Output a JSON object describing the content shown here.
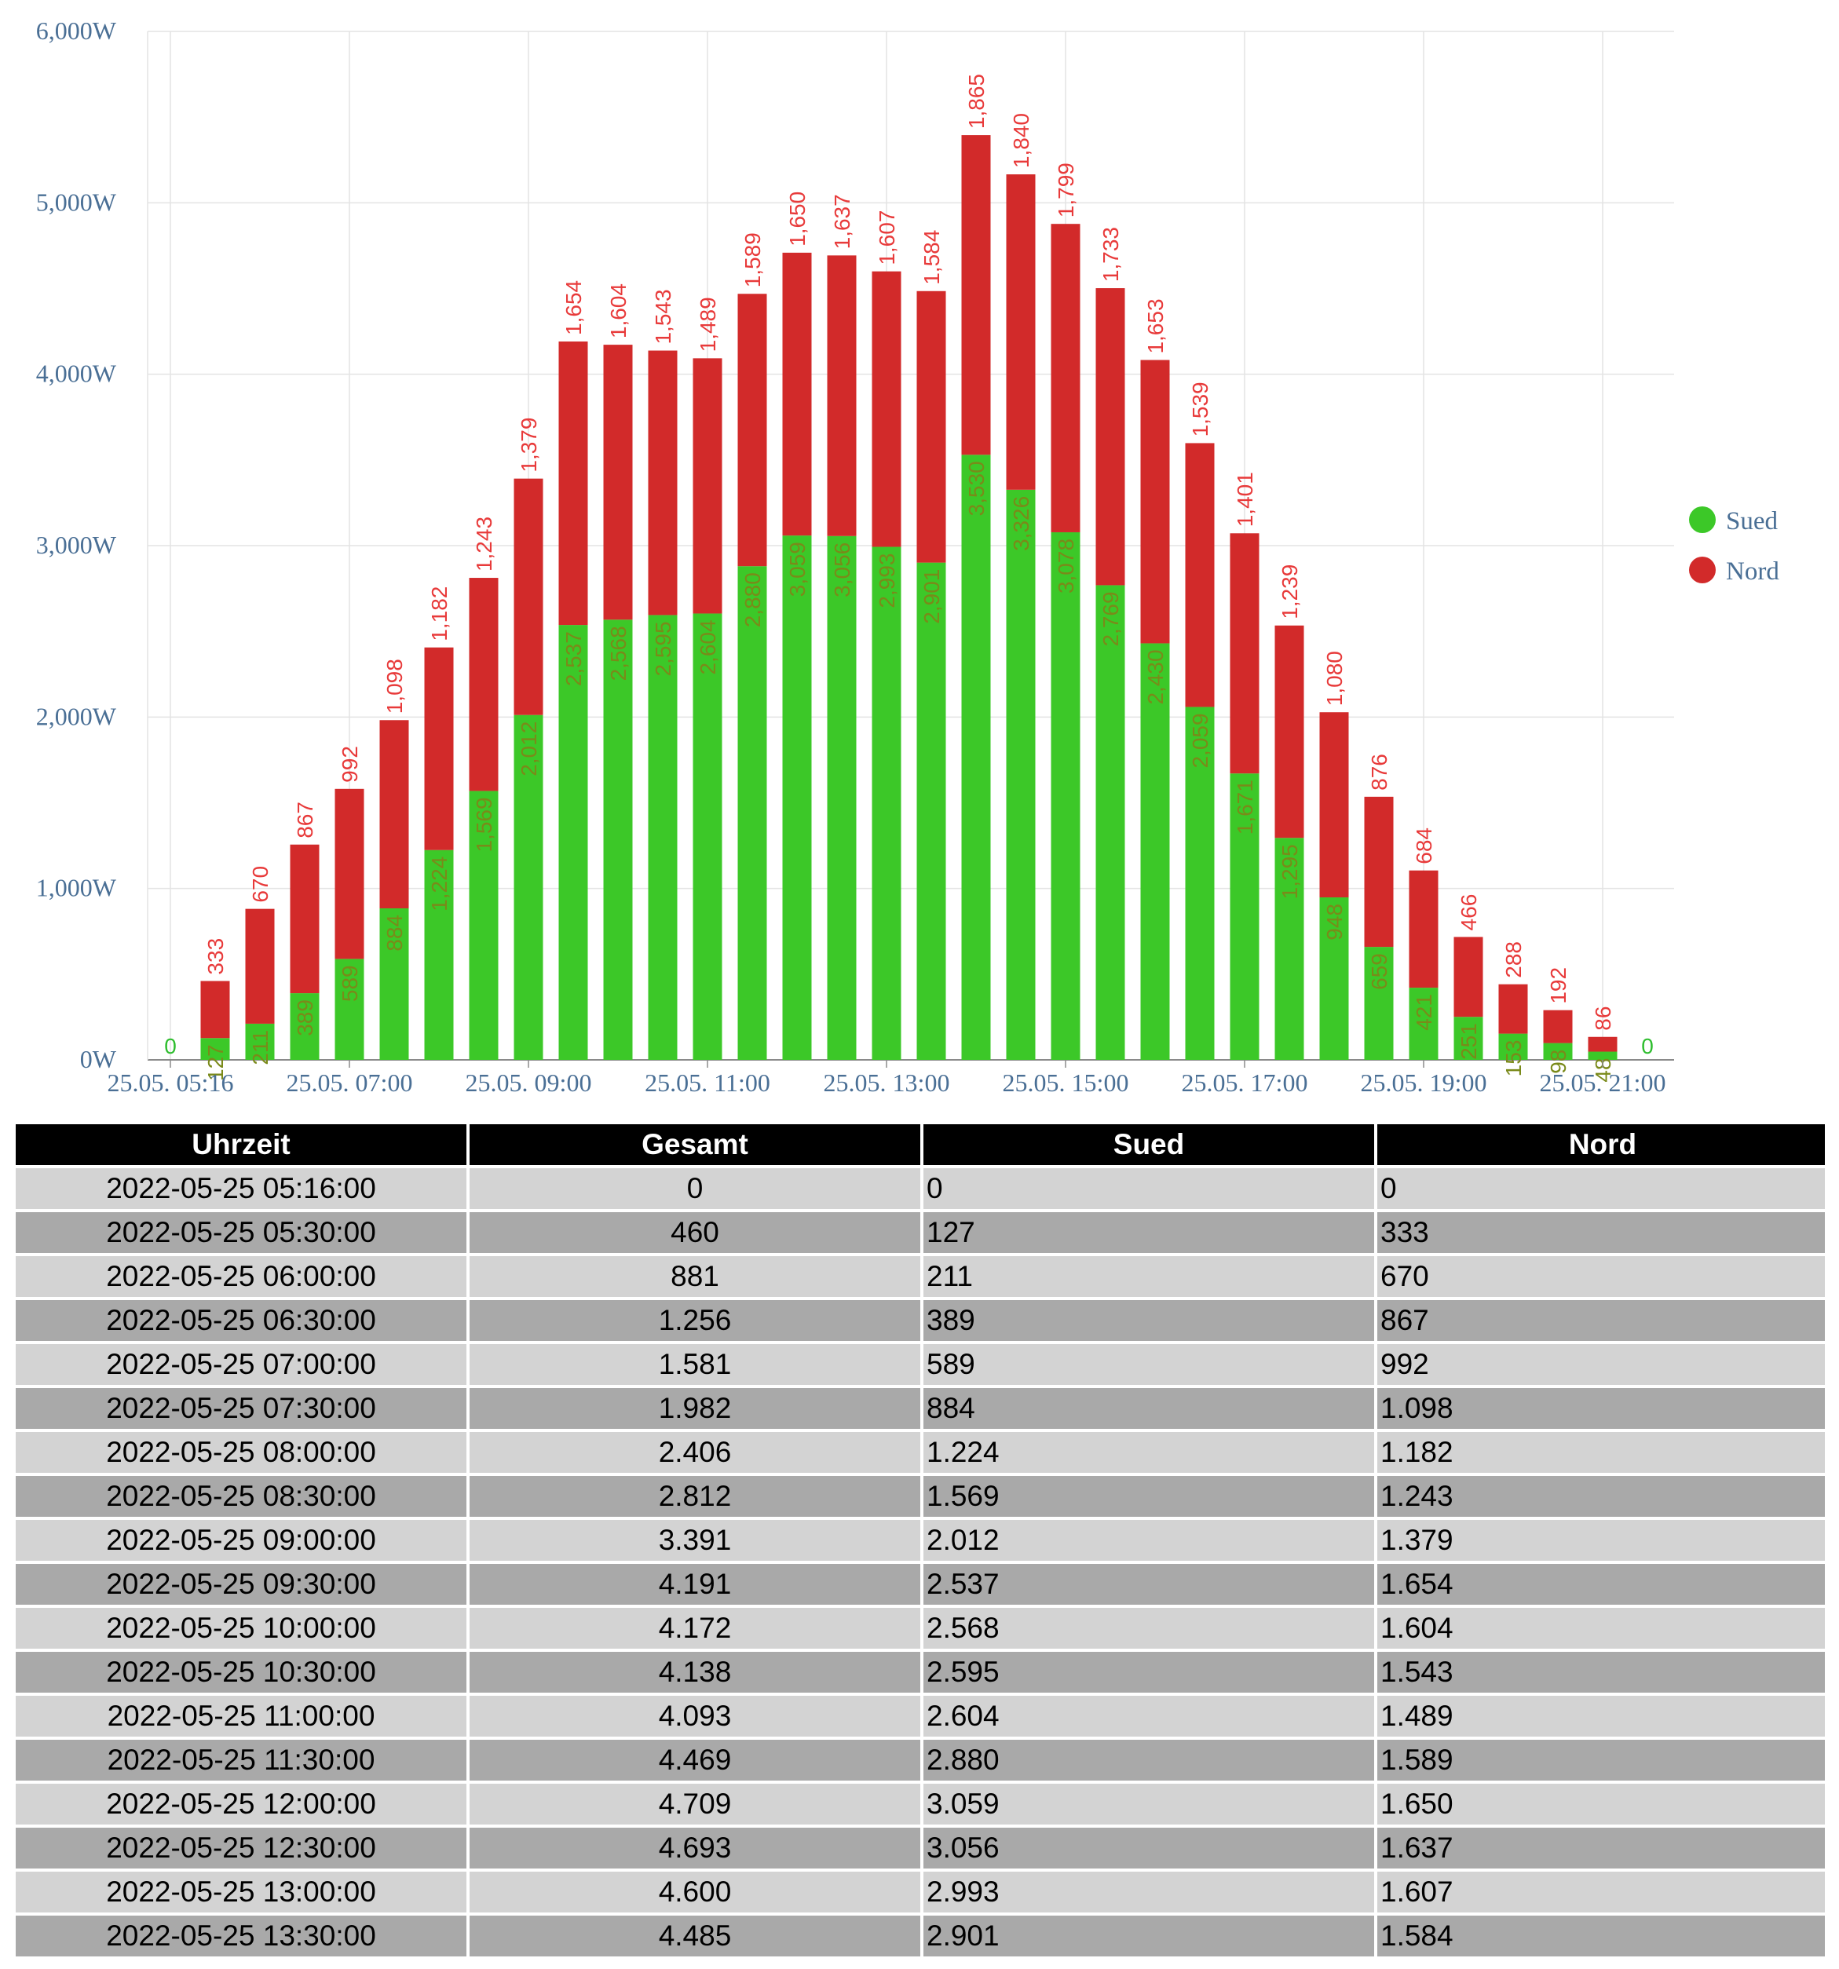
{
  "chart_data": {
    "type": "bar",
    "stacked": true,
    "title": "",
    "xlabel": "",
    "ylabel": "",
    "ylim": [
      0,
      6000
    ],
    "y_ticks": [
      "0W",
      "1,000W",
      "2,000W",
      "3,000W",
      "4,000W",
      "5,000W",
      "6,000W"
    ],
    "x_ticks": [
      "25.05. 05:16",
      "25.05. 07:00",
      "25.05. 09:00",
      "25.05. 11:00",
      "25.05. 13:00",
      "25.05. 15:00",
      "25.05. 17:00",
      "25.05. 19:00",
      "25.05. 21:00"
    ],
    "grid": true,
    "legend_position": "right",
    "categories": [
      "05:16",
      "05:30",
      "06:00",
      "06:30",
      "07:00",
      "07:30",
      "08:00",
      "08:30",
      "09:00",
      "09:30",
      "10:00",
      "10:30",
      "11:00",
      "11:30",
      "12:00",
      "12:30",
      "13:00",
      "13:30",
      "14:00",
      "14:30",
      "15:00",
      "15:30",
      "16:00",
      "16:30",
      "17:00",
      "17:30",
      "18:00",
      "18:30",
      "19:00",
      "19:30",
      "20:00",
      "20:30",
      "21:00",
      "21:16"
    ],
    "series": [
      {
        "name": "Sued",
        "color": "#3cc828",
        "values": [
          0,
          127,
          211,
          389,
          589,
          884,
          1224,
          1569,
          2012,
          2537,
          2568,
          2595,
          2604,
          2880,
          3059,
          3056,
          2993,
          2901,
          3530,
          3326,
          3078,
          2769,
          2430,
          2059,
          1671,
          1295,
          948,
          659,
          421,
          251,
          153,
          98,
          48,
          0
        ],
        "labels": [
          "0",
          "127",
          "211",
          "389",
          "589",
          "884",
          "1,224",
          "1,569",
          "2,012",
          "2,537",
          "2,568",
          "2,595",
          "2,604",
          "2,880",
          "3,059",
          "3,056",
          "2,993",
          "2,901",
          "3,530",
          "3,326",
          "3,078",
          "2,769",
          "2,430",
          "2,059",
          "1,671",
          "1,295",
          "948",
          "659",
          "421",
          "251",
          "153",
          "98",
          "48",
          "0"
        ]
      },
      {
        "name": "Nord",
        "color": "#d22a2a",
        "values": [
          0,
          333,
          670,
          867,
          992,
          1098,
          1182,
          1243,
          1379,
          1654,
          1604,
          1543,
          1489,
          1589,
          1650,
          1637,
          1607,
          1584,
          1865,
          1840,
          1799,
          1733,
          1653,
          1539,
          1401,
          1239,
          1080,
          876,
          684,
          466,
          288,
          192,
          86,
          0
        ],
        "labels": [
          "",
          "333",
          "670",
          "867",
          "992",
          "1,098",
          "1,182",
          "1,243",
          "1,379",
          "1,654",
          "1,604",
          "1,543",
          "1,489",
          "1,589",
          "1,650",
          "1,637",
          "1,607",
          "1,584",
          "1,865",
          "1,840",
          "1,799",
          "1,733",
          "1,653",
          "1,539",
          "1,401",
          "1,239",
          "1,080",
          "876",
          "684",
          "466",
          "288",
          "192",
          "86",
          ""
        ]
      }
    ]
  },
  "table": {
    "headers": [
      "Uhrzeit",
      "Gesamt",
      "Sued",
      "Nord"
    ],
    "rows": [
      [
        "2022-05-25 05:16:00",
        "0",
        "0",
        "0"
      ],
      [
        "2022-05-25 05:30:00",
        "460",
        "127",
        "333"
      ],
      [
        "2022-05-25 06:00:00",
        "881",
        "211",
        "670"
      ],
      [
        "2022-05-25 06:30:00",
        "1.256",
        "389",
        "867"
      ],
      [
        "2022-05-25 07:00:00",
        "1.581",
        "589",
        "992"
      ],
      [
        "2022-05-25 07:30:00",
        "1.982",
        "884",
        "1.098"
      ],
      [
        "2022-05-25 08:00:00",
        "2.406",
        "1.224",
        "1.182"
      ],
      [
        "2022-05-25 08:30:00",
        "2.812",
        "1.569",
        "1.243"
      ],
      [
        "2022-05-25 09:00:00",
        "3.391",
        "2.012",
        "1.379"
      ],
      [
        "2022-05-25 09:30:00",
        "4.191",
        "2.537",
        "1.654"
      ],
      [
        "2022-05-25 10:00:00",
        "4.172",
        "2.568",
        "1.604"
      ],
      [
        "2022-05-25 10:30:00",
        "4.138",
        "2.595",
        "1.543"
      ],
      [
        "2022-05-25 11:00:00",
        "4.093",
        "2.604",
        "1.489"
      ],
      [
        "2022-05-25 11:30:00",
        "4.469",
        "2.880",
        "1.589"
      ],
      [
        "2022-05-25 12:00:00",
        "4.709",
        "3.059",
        "1.650"
      ],
      [
        "2022-05-25 12:30:00",
        "4.693",
        "3.056",
        "1.637"
      ],
      [
        "2022-05-25 13:00:00",
        "4.600",
        "2.993",
        "1.607"
      ],
      [
        "2022-05-25 13:30:00",
        "4.485",
        "2.901",
        "1.584"
      ]
    ]
  }
}
